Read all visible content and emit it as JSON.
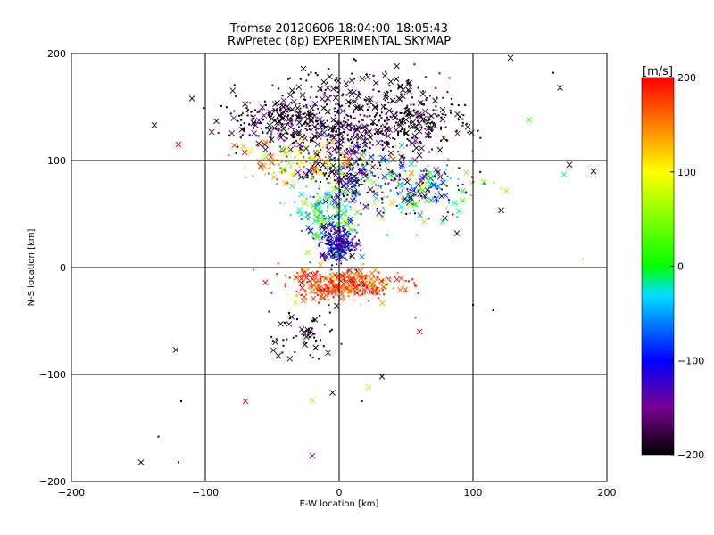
{
  "chart_data": {
    "type": "scatter",
    "title": "Tromsø 20120606 18:04:00–18:05:43",
    "subtitle": "RwPretec (8p) EXPERIMENTAL SKYMAP",
    "xlabel": "E-W location [km]",
    "ylabel": "N-S location [km]",
    "xlim": [
      -200,
      200
    ],
    "ylim": [
      -200,
      200
    ],
    "xticks": [
      -200,
      -100,
      0,
      100,
      200
    ],
    "yticks": [
      -200,
      -100,
      0,
      100,
      200
    ],
    "xtick_labels": [
      "−200",
      "−100",
      "0",
      "100",
      "200"
    ],
    "ytick_labels": [
      "−200",
      "−100",
      "0",
      "100",
      "200"
    ],
    "grid": true,
    "markers": [
      "cross",
      "dot"
    ],
    "colorbar": {
      "title": "[m/s]",
      "range": [
        -200,
        200
      ],
      "ticks": [
        200,
        100,
        0,
        -100,
        -200
      ],
      "tick_labels": [
        "200",
        "100",
        "0",
        "−100",
        "−200"
      ],
      "stops": [
        "#000000",
        "#7a0090",
        "#0000ff",
        "#00e0ff",
        "#00ff00",
        "#ffff00",
        "#ff0000"
      ],
      "stop_values": [
        -200,
        -150,
        -100,
        -30,
        0,
        100,
        200
      ]
    },
    "clusters": [
      {
        "x": -40,
        "y": 138,
        "sx": 22,
        "sy": 12,
        "v": -185,
        "sv": 25
      },
      {
        "x": 0,
        "y": 125,
        "sx": 18,
        "sy": 14,
        "v": -170,
        "sv": 35
      },
      {
        "x": 55,
        "y": 135,
        "sx": 22,
        "sy": 12,
        "v": -190,
        "sv": 15
      },
      {
        "x": 10,
        "y": 168,
        "sx": 30,
        "sy": 14,
        "v": -190,
        "sv": 15
      },
      {
        "x": 5,
        "y": 88,
        "sx": 14,
        "sy": 12,
        "v": -160,
        "sv": 60
      },
      {
        "x": 55,
        "y": 75,
        "sx": 24,
        "sy": 16,
        "v": -60,
        "sv": 90
      },
      {
        "x": -10,
        "y": 55,
        "sx": 12,
        "sy": 12,
        "v": -20,
        "sv": 50
      },
      {
        "x": 0,
        "y": 22,
        "sx": 7,
        "sy": 10,
        "v": -120,
        "sv": 40
      },
      {
        "x": 0,
        "y": -16,
        "sx": 22,
        "sy": 7,
        "v": 175,
        "sv": 40
      },
      {
        "x": -25,
        "y": -65,
        "sx": 12,
        "sy": 12,
        "v": -190,
        "sv": 15
      },
      {
        "x": -25,
        "y": 100,
        "sx": 25,
        "sy": 10,
        "v": 120,
        "sv": 60
      }
    ],
    "outliers": [
      {
        "x": -148,
        "y": -182,
        "v": -200
      },
      {
        "x": -120,
        "y": -182,
        "v": -200
      },
      {
        "x": -135,
        "y": -158,
        "v": -200
      },
      {
        "x": -118,
        "y": -125,
        "v": -200
      },
      {
        "x": -122,
        "y": -77,
        "v": -200
      },
      {
        "x": -120,
        "y": 115,
        "v": 200
      },
      {
        "x": -110,
        "y": 158,
        "v": -200
      },
      {
        "x": -138,
        "y": 133,
        "v": -200
      },
      {
        "x": 128,
        "y": 196,
        "v": -200
      },
      {
        "x": 160,
        "y": 182,
        "v": -200
      },
      {
        "x": 165,
        "y": 168,
        "v": -200
      },
      {
        "x": 172,
        "y": 96,
        "v": -200
      },
      {
        "x": 168,
        "y": 87,
        "v": -20
      },
      {
        "x": 190,
        "y": 90,
        "v": -200
      },
      {
        "x": 182,
        "y": 8,
        "v": 120
      },
      {
        "x": 142,
        "y": 138,
        "v": 20
      },
      {
        "x": 115,
        "y": -40,
        "v": -200
      },
      {
        "x": 100,
        "y": -35,
        "v": -200
      },
      {
        "x": 32,
        "y": -102,
        "v": -200
      },
      {
        "x": 22,
        "y": -112,
        "v": 120
      },
      {
        "x": -5,
        "y": -117,
        "v": -200
      },
      {
        "x": -20,
        "y": -124,
        "v": 60
      },
      {
        "x": -70,
        "y": -125,
        "v": 200
      },
      {
        "x": 17,
        "y": -125,
        "v": -200
      },
      {
        "x": -20,
        "y": -176,
        "v": -150
      },
      {
        "x": 57,
        "y": -47,
        "v": -50
      },
      {
        "x": 60,
        "y": -60,
        "v": 200
      },
      {
        "x": 108,
        "y": 80,
        "v": 40
      },
      {
        "x": 88,
        "y": 32,
        "v": -200
      }
    ]
  }
}
